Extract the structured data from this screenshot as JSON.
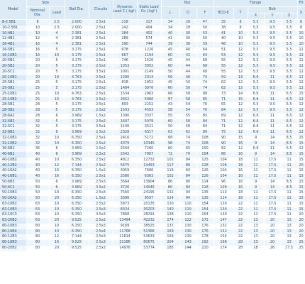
{
  "headers": {
    "model": "Model",
    "size": "Size",
    "nominal_dia": "Nominal Dia.",
    "lead": "Lead",
    "ball_dia": "Ball Dia.",
    "circuits": "Circuits",
    "dynamic_load": "Dynamic Load C ( kgf )",
    "static_load": "Static Load Co ( kgf )",
    "nut": "Nut",
    "nut_l": "L",
    "nut_d": "D",
    "nut_f": "F",
    "flange": "Flange",
    "bcd_e": "BCD-E",
    "flange_t": "T",
    "bolt": "Bolt",
    "bolt_x": "X",
    "bolt_y": "Y",
    "bolt_z": "Z",
    "fit": "Fit",
    "fit_s": "S"
  },
  "rows": [
    [
      "8-2.5B1",
      "8",
      "2.5",
      "2.000",
      "2.5x1",
      "218",
      "317",
      "34",
      "26",
      "47",
      "35",
      "8",
      "5.5",
      "9.5",
      "5.5",
      "8"
    ],
    [
      "10-2.5B1",
      "10",
      "2.5",
      "2.000",
      "2.5x1",
      "242",
      "404",
      "34",
      "28",
      "50",
      "38",
      "8",
      "5.5",
      "9.5",
      "5.5",
      "8"
    ],
    [
      "10-4B1",
      "10",
      "4",
      "2.381",
      "2.5x1",
      "284",
      "402",
      "40",
      "30",
      "53",
      "41",
      "10",
      "5.5",
      "9.5",
      "5.5",
      "10"
    ],
    [
      "12-4B1",
      "12",
      "4",
      "2.381",
      "2.5x1",
      "289",
      "574",
      "41",
      "30",
      "50",
      "40",
      "10",
      "5.5",
      "9.5",
      "5.5",
      "10"
    ],
    [
      "16-4B1",
      "16",
      "4",
      "2.381",
      "2.5x1",
      "390",
      "744",
      "39",
      "36",
      "59",
      "48",
      "10",
      "5.5",
      "9.5",
      "5.5",
      "10"
    ],
    [
      "16-5B1",
      "16",
      "5",
      "3.175",
      "2.5x1",
      "678",
      "1226",
      "45",
      "40",
      "64",
      "51",
      "12",
      "5.5",
      "9.5",
      "5.5",
      "12"
    ],
    [
      "16-10B1",
      "16",
      "10",
      "3.175",
      "2.5x1",
      "667",
      "1194",
      "60",
      "42",
      "64",
      "53",
      "12",
      "5.5",
      "9.5",
      "5.5",
      "12"
    ],
    [
      "20-5B1",
      "20",
      "5",
      "3.175",
      "2.5x1",
      "746",
      "1526",
      "45",
      "44",
      "68",
      "55",
      "12",
      "5.5",
      "9.5",
      "5.5",
      "12"
    ],
    [
      "20-5B2",
      "20",
      "5",
      "3.175",
      "2.5x2",
      "1353",
      "3052",
      "60",
      "44",
      "68",
      "55",
      "12",
      "5.5",
      "9.5",
      "5.5",
      "12"
    ],
    [
      "20-5C1",
      "20",
      "5",
      "3.175",
      "3.5x1",
      "1001",
      "2149",
      "50",
      "44",
      "68",
      "55",
      "12",
      "5.5",
      "9.5",
      "5.5",
      "12"
    ],
    [
      "20-10B1",
      "20",
      "10",
      "4.763",
      "2.5x1",
      "1280",
      "2314",
      "56",
      "46",
      "74",
      "59",
      "13",
      "6.6",
      "11",
      "6.5",
      "12"
    ],
    [
      "25-5B1",
      "25",
      "5",
      "3.175",
      "2.5x1",
      "818",
      "1952",
      "45",
      "50",
      "74",
      "62",
      "12",
      "5.5",
      "9.5",
      "5.5",
      "12"
    ],
    [
      "25-5B2",
      "25",
      "5",
      "3.175",
      "2.5x2",
      "1484",
      "3976",
      "60",
      "50",
      "74",
      "62",
      "12",
      "5.5",
      "9.5",
      "5.5",
      "12"
    ],
    [
      "25-10B1",
      "25",
      "10",
      "4.763",
      "2.5x1",
      "1534",
      "2963",
      "66",
      "58",
      "88",
      "73",
      "14",
      "6.6",
      "11",
      "6.5",
      "15"
    ],
    [
      "25-10B2",
      "25",
      "10",
      "4.763",
      "2.5x2",
      "2652",
      "5966",
      "97",
      "58",
      "85",
      "71",
      "15",
      "6.6",
      "11",
      "6.5",
      "12"
    ],
    [
      "28-5B1",
      "28",
      "5",
      "3.175",
      "2.5x1",
      "893",
      "2252",
      "43",
      "54",
      "76",
      "65",
      "12",
      "5.5",
      "9.5",
      "5.5",
      "12"
    ],
    [
      "28-5B2",
      "28",
      "5",
      "3.175",
      "2.5x2",
      "1503",
      "4503",
      "58",
      "54",
      "76",
      "64",
      "12",
      "5.5",
      "9.5",
      "5.5",
      "12"
    ],
    [
      "28-6A2",
      "28",
      "6",
      "3.969",
      "1.5x2",
      "1390",
      "3337",
      "55",
      "55",
      "85",
      "69",
      "12",
      "6.6",
      "11",
      "6.5",
      "12"
    ],
    [
      "32-5B2",
      "32",
      "5",
      "3.175",
      "2.5x2",
      "1607",
      "5079",
      "60",
      "58",
      "84",
      "71",
      "12",
      "6.6",
      "11",
      "6.5",
      "12"
    ],
    [
      "32-5C1",
      "32",
      "5",
      "3.175",
      "3.5x1",
      "1100",
      "3521",
      "50",
      "58",
      "84",
      "71",
      "12",
      "6.6",
      "11",
      "6.5",
      "12"
    ],
    [
      "32-6B2",
      "32",
      "6",
      "3.969",
      "2.5x2",
      "2328",
      "6317",
      "63",
      "62",
      "89",
      "75",
      "12",
      "6.6",
      "11",
      "6.5",
      "12"
    ],
    [
      "32-10B1",
      "32",
      "10",
      "6.350",
      "2.5x1",
      "2416",
      "5172",
      "68",
      "74",
      "108",
      "90",
      "15",
      "9",
      "14",
      "8.5",
      "15"
    ],
    [
      "32-10B2",
      "32",
      "10",
      "6.350",
      "2.5x2",
      "4379",
      "10345",
      "98",
      "74",
      "108",
      "90",
      "16",
      "9",
      "14",
      "8.5",
      "15"
    ],
    [
      "36-6B2",
      "36",
      "6",
      "3.969",
      "2.5x2",
      "2504",
      "7260",
      "60",
      "65",
      "100",
      "82",
      "12",
      "6.6",
      "11",
      "6.5",
      "12"
    ],
    [
      "40-6B2",
      "40",
      "6",
      "3.969",
      "2.5x2",
      "2542",
      "7967",
      "72",
      "70",
      "104",
      "86",
      "16",
      "9",
      "14",
      "8.5",
      "15"
    ],
    [
      "40-10B2",
      "40",
      "10",
      "6.350",
      "2.5x2",
      "4812",
      "12732",
      "102",
      "84",
      "125",
      "104",
      "18",
      "11",
      "17.5",
      "11",
      "15"
    ],
    [
      "40-12B2",
      "40",
      "12",
      "7.144",
      "2.5x2",
      "5675",
      "14453",
      "117",
      "86",
      "128",
      "106",
      "18",
      "11",
      "17.5",
      "11",
      "20"
    ],
    [
      "40-16A2",
      "40",
      "16",
      "6.350",
      "1.5x2",
      "3059",
      "7686",
      "116",
      "84",
      "126",
      "104",
      "16",
      "11",
      "17.5",
      "11",
      "15"
    ],
    [
      "40-16B1",
      "40",
      "16",
      "6.350",
      "2.5x1",
      "2580",
      "6363",
      "102",
      "84",
      "126",
      "104",
      "16",
      "11",
      "17.5",
      "11",
      "15"
    ],
    [
      "50-6B3",
      "50",
      "6",
      "3.969",
      "2.5x3",
      "3564",
      "13904",
      "86",
      "80",
      "114",
      "96",
      "16",
      "9",
      "14",
      "8.5",
      "15"
    ],
    [
      "50-6C2",
      "50",
      "6",
      "3.969",
      "3.5x2",
      "3726",
      "14045",
      "80",
      "84",
      "118",
      "100",
      "16",
      "9",
      "14",
      "8.5",
      "15"
    ],
    [
      "50-10B3",
      "50",
      "10",
      "6.350",
      "2.5x3",
      "7560",
      "24195",
      "132",
      "94",
      "135",
      "113",
      "18",
      "11",
      "17.5",
      "11",
      "15"
    ],
    [
      "50-20A2",
      "50",
      "20",
      "6.350",
      "1.5x2",
      "3396",
      "9597",
      "114",
      "94",
      "135",
      "114",
      "18",
      "11",
      "17.5",
      "11",
      "15"
    ],
    [
      "63-10B2",
      "63",
      "10",
      "6.350",
      "2.5x2",
      "5873",
      "20135",
      "130",
      "110",
      "154",
      "130",
      "22",
      "11",
      "17.5",
      "11",
      "15"
    ],
    [
      "63-10B3",
      "63",
      "10",
      "6.350",
      "2.5x3",
      "8324",
      "30203",
      "140",
      "110",
      "154",
      "130",
      "22",
      "11",
      "17.5",
      "11",
      "15"
    ],
    [
      "63-10C3",
      "63",
      "10",
      "6.350",
      "3.5x3",
      "7868",
      "28291",
      "138",
      "110",
      "154",
      "130",
      "22",
      "11",
      "17.5",
      "11",
      "20"
    ],
    [
      "63-20B2",
      "63",
      "20",
      "9.525",
      "2.5x2",
      "13494",
      "42232",
      "174",
      "122",
      "172",
      "147",
      "22",
      "13",
      "20",
      "13",
      "20"
    ],
    [
      "80-10B3",
      "80",
      "10",
      "6.350",
      "2.5x3",
      "9189",
      "38525",
      "137",
      "130",
      "176",
      "152",
      "22",
      "13",
      "20",
      "13",
      "20"
    ],
    [
      "80-10B4",
      "80",
      "10",
      "6.350",
      "2.5x4",
      "11768",
      "51366",
      "169",
      "130",
      "176",
      "152",
      "22",
      "13",
      "20",
      "13",
      "20"
    ],
    [
      "80-12B3",
      "80",
      "12",
      "7.144",
      "2.5x3",
      "11814",
      "53633",
      "156",
      "130",
      "178",
      "154",
      "22",
      "13",
      "20",
      "13",
      "20"
    ],
    [
      "80-16B3",
      "80",
      "16",
      "9.525",
      "2.5x3",
      "21186",
      "80675",
      "204",
      "143",
      "192",
      "168",
      "28",
      "13",
      "20",
      "13",
      "25"
    ],
    [
      "80-20B2",
      "80",
      "20",
      "9.525",
      "2.5x2",
      "14976",
      "53774",
      "185",
      "144",
      "210",
      "174",
      "28",
      "18",
      "26",
      "17.5",
      "25"
    ]
  ]
}
